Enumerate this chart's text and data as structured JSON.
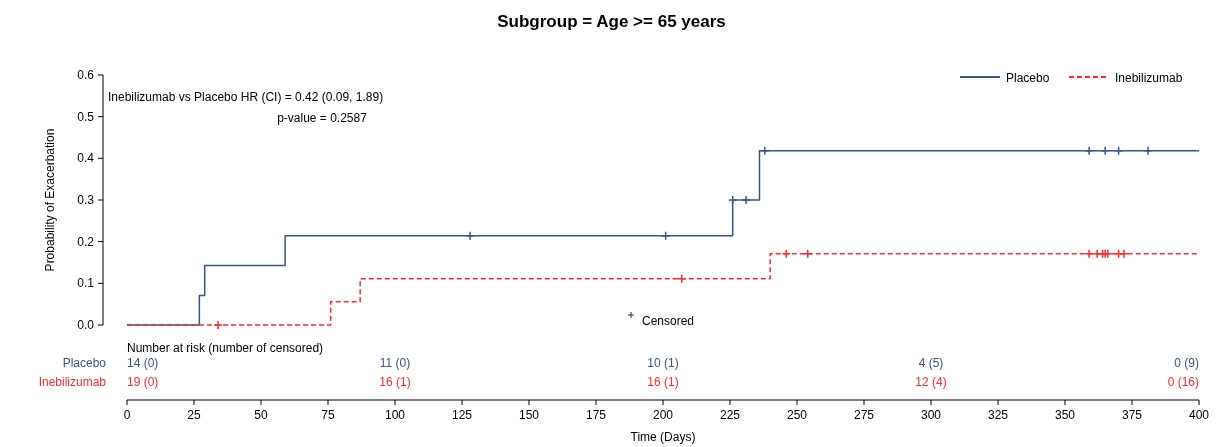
{
  "chart_data": {
    "type": "step",
    "title": "Subgroup = Age >= 65 years",
    "xlabel": "Time (Days)",
    "ylabel": "Probability of Exacerbation",
    "xlim": [
      0,
      400
    ],
    "xticks": [
      0,
      25,
      50,
      75,
      100,
      125,
      150,
      175,
      200,
      225,
      250,
      275,
      300,
      325,
      350,
      375,
      400
    ],
    "ylim": [
      0,
      0.6
    ],
    "yticks": [
      {
        "value": 0,
        "label": "0.0"
      },
      0.1,
      0.2,
      0.3,
      0.4,
      0.5,
      0.6
    ],
    "legend": "top right",
    "grid": false,
    "series": [
      {
        "name": "Placebo",
        "color": "#34558f",
        "line_style": "solid",
        "x": [
          0,
          27,
          29,
          59,
          226,
          236,
          400
        ],
        "values": [
          0,
          0.071,
          0.143,
          0.214,
          0.3,
          0.418,
          0.418
        ]
      },
      {
        "name": "Inebilizumab",
        "color": "#ff2a2a",
        "line_style": "dashed",
        "x": [
          0,
          76,
          87,
          240,
          400
        ],
        "values": [
          0,
          0.056,
          0.111,
          0.171,
          0.171
        ]
      },
      {
        "type": "scatter",
        "color": "#34558f",
        "marker": "cross",
        "x": [
          128,
          201,
          226,
          231,
          238,
          359,
          365,
          370,
          381
        ],
        "values": [
          0.214,
          0.214,
          0.3,
          0.3,
          0.418,
          0.418,
          0.418,
          0.418,
          0.418
        ]
      },
      {
        "type": "scatter",
        "color": "#ff2a2a",
        "marker": "cross",
        "x": [
          34,
          207,
          246,
          254,
          359,
          362,
          364,
          365,
          366,
          370,
          372
        ],
        "values": [
          0,
          0.111,
          0.171,
          0.171,
          0.171,
          0.171,
          0.171,
          0.171,
          0.171,
          0.171,
          0.171
        ]
      }
    ],
    "annotations": [
      "Inebilizumab vs Placebo HR (CI) = 0.42 (0.09, 1.89)",
      "p-value = 0.2587",
      "Censored",
      "Number at risk (number of censored)",
      "Placebo",
      "14 (0)",
      "11 (0)",
      "10 (1)",
      "4 (5)",
      "0 (9)",
      "Inebilizumab",
      "19 (0)",
      "16 (1)",
      "16 (1)",
      "12 (4)",
      "0 (16)"
    ]
  }
}
